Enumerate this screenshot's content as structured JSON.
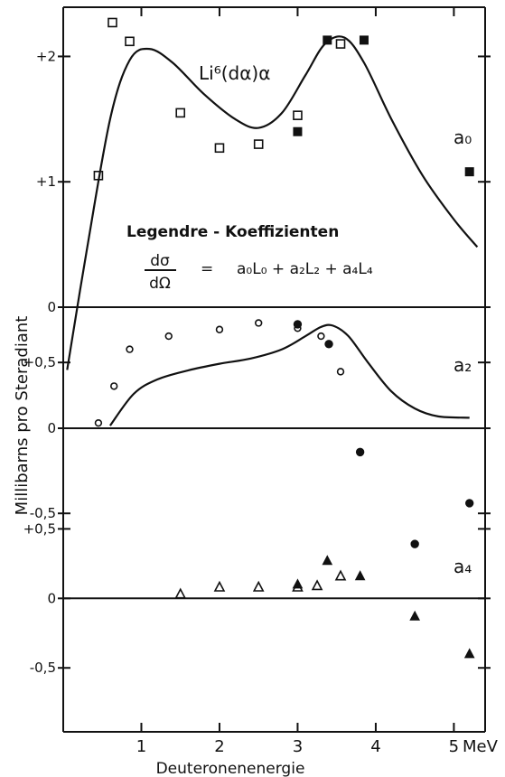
{
  "chart_data": [
    {
      "panel": "a0",
      "type": "scatter",
      "title": "Li⁶(dα)α",
      "series_label": "a₀",
      "xlim": [
        0,
        5.4
      ],
      "ylim": [
        0,
        2.45
      ],
      "yticks": [
        {
          "value": 2,
          "label": "+2"
        },
        {
          "value": 1,
          "label": "+1"
        },
        {
          "value": 0,
          "label": "0"
        }
      ],
      "legend_title": "Legendre - Koeffizienten",
      "formula": {
        "lhs_num": "dσ",
        "lhs_den": "dΩ",
        "eq": "=",
        "rhs": "a₀L₀ + a₂L₂ + a₄L₄"
      },
      "series": [
        {
          "marker": "open-square",
          "points": [
            [
              0.45,
              1.05
            ],
            [
              0.63,
              2.27
            ],
            [
              0.85,
              2.12
            ],
            [
              1.5,
              1.55
            ],
            [
              2.0,
              1.27
            ],
            [
              2.5,
              1.3
            ],
            [
              3.0,
              1.53
            ],
            [
              3.55,
              2.1
            ]
          ]
        },
        {
          "marker": "filled-square",
          "points": [
            [
              3.0,
              1.4
            ],
            [
              3.38,
              2.13
            ],
            [
              3.85,
              2.13
            ],
            [
              5.2,
              1.08
            ]
          ]
        },
        {
          "marker": "curve",
          "points": [
            [
              0.05,
              -0.5
            ],
            [
              0.3,
              0.45
            ],
            [
              0.6,
              1.5
            ],
            [
              0.85,
              1.97
            ],
            [
              1.1,
              2.06
            ],
            [
              1.4,
              1.95
            ],
            [
              1.8,
              1.7
            ],
            [
              2.2,
              1.5
            ],
            [
              2.5,
              1.43
            ],
            [
              2.8,
              1.55
            ],
            [
              3.1,
              1.85
            ],
            [
              3.35,
              2.1
            ],
            [
              3.6,
              2.15
            ],
            [
              3.85,
              1.95
            ],
            [
              4.2,
              1.5
            ],
            [
              4.6,
              1.05
            ],
            [
              5.0,
              0.7
            ],
            [
              5.3,
              0.48
            ]
          ]
        }
      ]
    },
    {
      "panel": "a2",
      "type": "scatter",
      "series_label": "a₂",
      "xlim": [
        0,
        5.4
      ],
      "ylim": [
        0,
        0.92
      ],
      "yticks": [
        {
          "value": 0.5,
          "label": "+0,5"
        },
        {
          "value": 0,
          "label": "0"
        }
      ],
      "series": [
        {
          "marker": "open-circle",
          "points": [
            [
              0.45,
              0.04
            ],
            [
              0.65,
              0.32
            ],
            [
              0.85,
              0.6
            ],
            [
              1.35,
              0.7
            ],
            [
              2.0,
              0.75
            ],
            [
              2.5,
              0.8
            ],
            [
              3.0,
              0.76
            ],
            [
              3.3,
              0.7
            ],
            [
              3.55,
              0.43
            ]
          ]
        },
        {
          "marker": "filled-circle",
          "points": [
            [
              3.0,
              0.79
            ],
            [
              3.4,
              0.64
            ]
          ]
        },
        {
          "marker": "curve",
          "points": [
            [
              0.6,
              0.02
            ],
            [
              0.9,
              0.26
            ],
            [
              1.2,
              0.37
            ],
            [
              1.6,
              0.44
            ],
            [
              2.0,
              0.49
            ],
            [
              2.4,
              0.53
            ],
            [
              2.8,
              0.6
            ],
            [
              3.1,
              0.7
            ],
            [
              3.3,
              0.77
            ],
            [
              3.45,
              0.78
            ],
            [
              3.65,
              0.7
            ],
            [
              3.9,
              0.5
            ],
            [
              4.2,
              0.28
            ],
            [
              4.5,
              0.15
            ],
            [
              4.8,
              0.09
            ],
            [
              5.2,
              0.08
            ]
          ]
        }
      ]
    },
    {
      "panel": "a2-lower",
      "type": "scatter",
      "xlim": [
        0,
        5.4
      ],
      "ylim": [
        -0.95,
        0
      ],
      "yticks": [
        {
          "value": -0.5,
          "label": "-0,5"
        }
      ],
      "series": [
        {
          "marker": "filled-circle",
          "points": [
            [
              3.8,
              -0.14
            ],
            [
              4.5,
              -0.68
            ],
            [
              5.2,
              -0.44
            ]
          ]
        }
      ]
    },
    {
      "panel": "a4",
      "type": "scatter",
      "series_label": "a₄",
      "xlim": [
        0,
        5.4
      ],
      "ylim": [
        -0.96,
        0.6
      ],
      "yticks": [
        {
          "value": 0.5,
          "label": "+0,5"
        },
        {
          "value": 0,
          "label": "0"
        },
        {
          "value": -0.5,
          "label": "-0,5"
        }
      ],
      "xticks": [
        {
          "value": 1,
          "label": "1"
        },
        {
          "value": 2,
          "label": "2"
        },
        {
          "value": 3,
          "label": "3"
        },
        {
          "value": 4,
          "label": "4"
        },
        {
          "value": 5,
          "label": "5"
        }
      ],
      "x_unit": "MeV",
      "xlabel": "Deuteronenenergie",
      "series": [
        {
          "marker": "open-triangle",
          "points": [
            [
              1.5,
              0.03
            ],
            [
              2.0,
              0.08
            ],
            [
              2.5,
              0.08
            ],
            [
              3.0,
              0.08
            ],
            [
              3.25,
              0.09
            ],
            [
              3.55,
              0.16
            ]
          ]
        },
        {
          "marker": "filled-triangle",
          "points": [
            [
              3.0,
              0.1
            ],
            [
              3.38,
              0.27
            ],
            [
              3.8,
              0.16
            ],
            [
              4.5,
              -0.13
            ],
            [
              5.2,
              -0.4
            ]
          ]
        }
      ]
    }
  ],
  "ylabel": "Millibarns pro Steradiant"
}
